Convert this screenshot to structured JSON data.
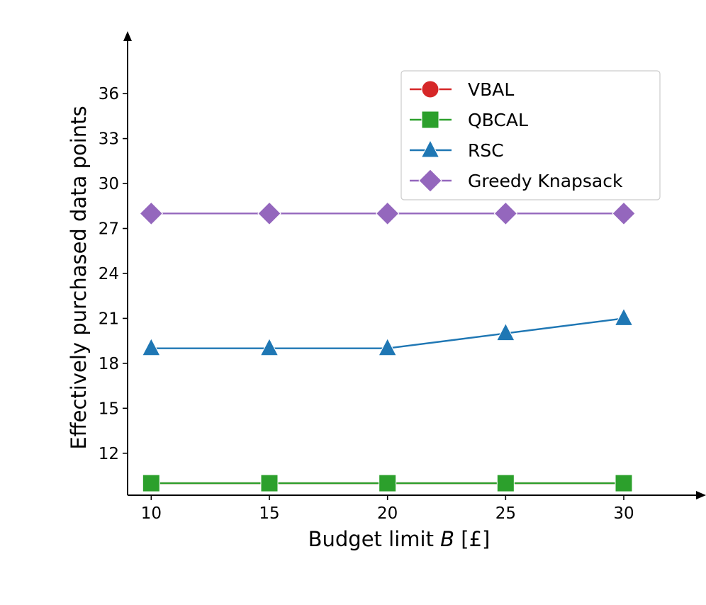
{
  "chart_data": {
    "type": "line",
    "title": "",
    "xlabel_prefix": "Budget limit ",
    "xlabel_var": "B",
    "xlabel_suffix": " [£]",
    "ylabel": "Effectively purchased data points",
    "x": [
      10,
      15,
      20,
      25,
      30
    ],
    "x_ticks": [
      "10",
      "15",
      "20",
      "25",
      "30"
    ],
    "y_ticks": [
      "12",
      "15",
      "18",
      "21",
      "24",
      "27",
      "30",
      "33",
      "36"
    ],
    "xlim": [
      9,
      33
    ],
    "ylim": [
      9.2,
      39.6
    ],
    "grid": false,
    "legend_position": "top-right",
    "series": [
      {
        "name": "VBAL",
        "marker": "circle",
        "color": "#d62728",
        "values": [
          10,
          10,
          10,
          10,
          10
        ]
      },
      {
        "name": "QBCAL",
        "marker": "square",
        "color": "#2ca02c",
        "values": [
          10,
          10,
          10,
          10,
          10
        ]
      },
      {
        "name": "RSC",
        "marker": "triangle",
        "color": "#1f77b4",
        "values": [
          19,
          19,
          19,
          20,
          21
        ]
      },
      {
        "name": "Greedy Knapsack",
        "marker": "diamond",
        "color": "#9467bd",
        "values": [
          28,
          28,
          28,
          28,
          28
        ]
      }
    ]
  }
}
